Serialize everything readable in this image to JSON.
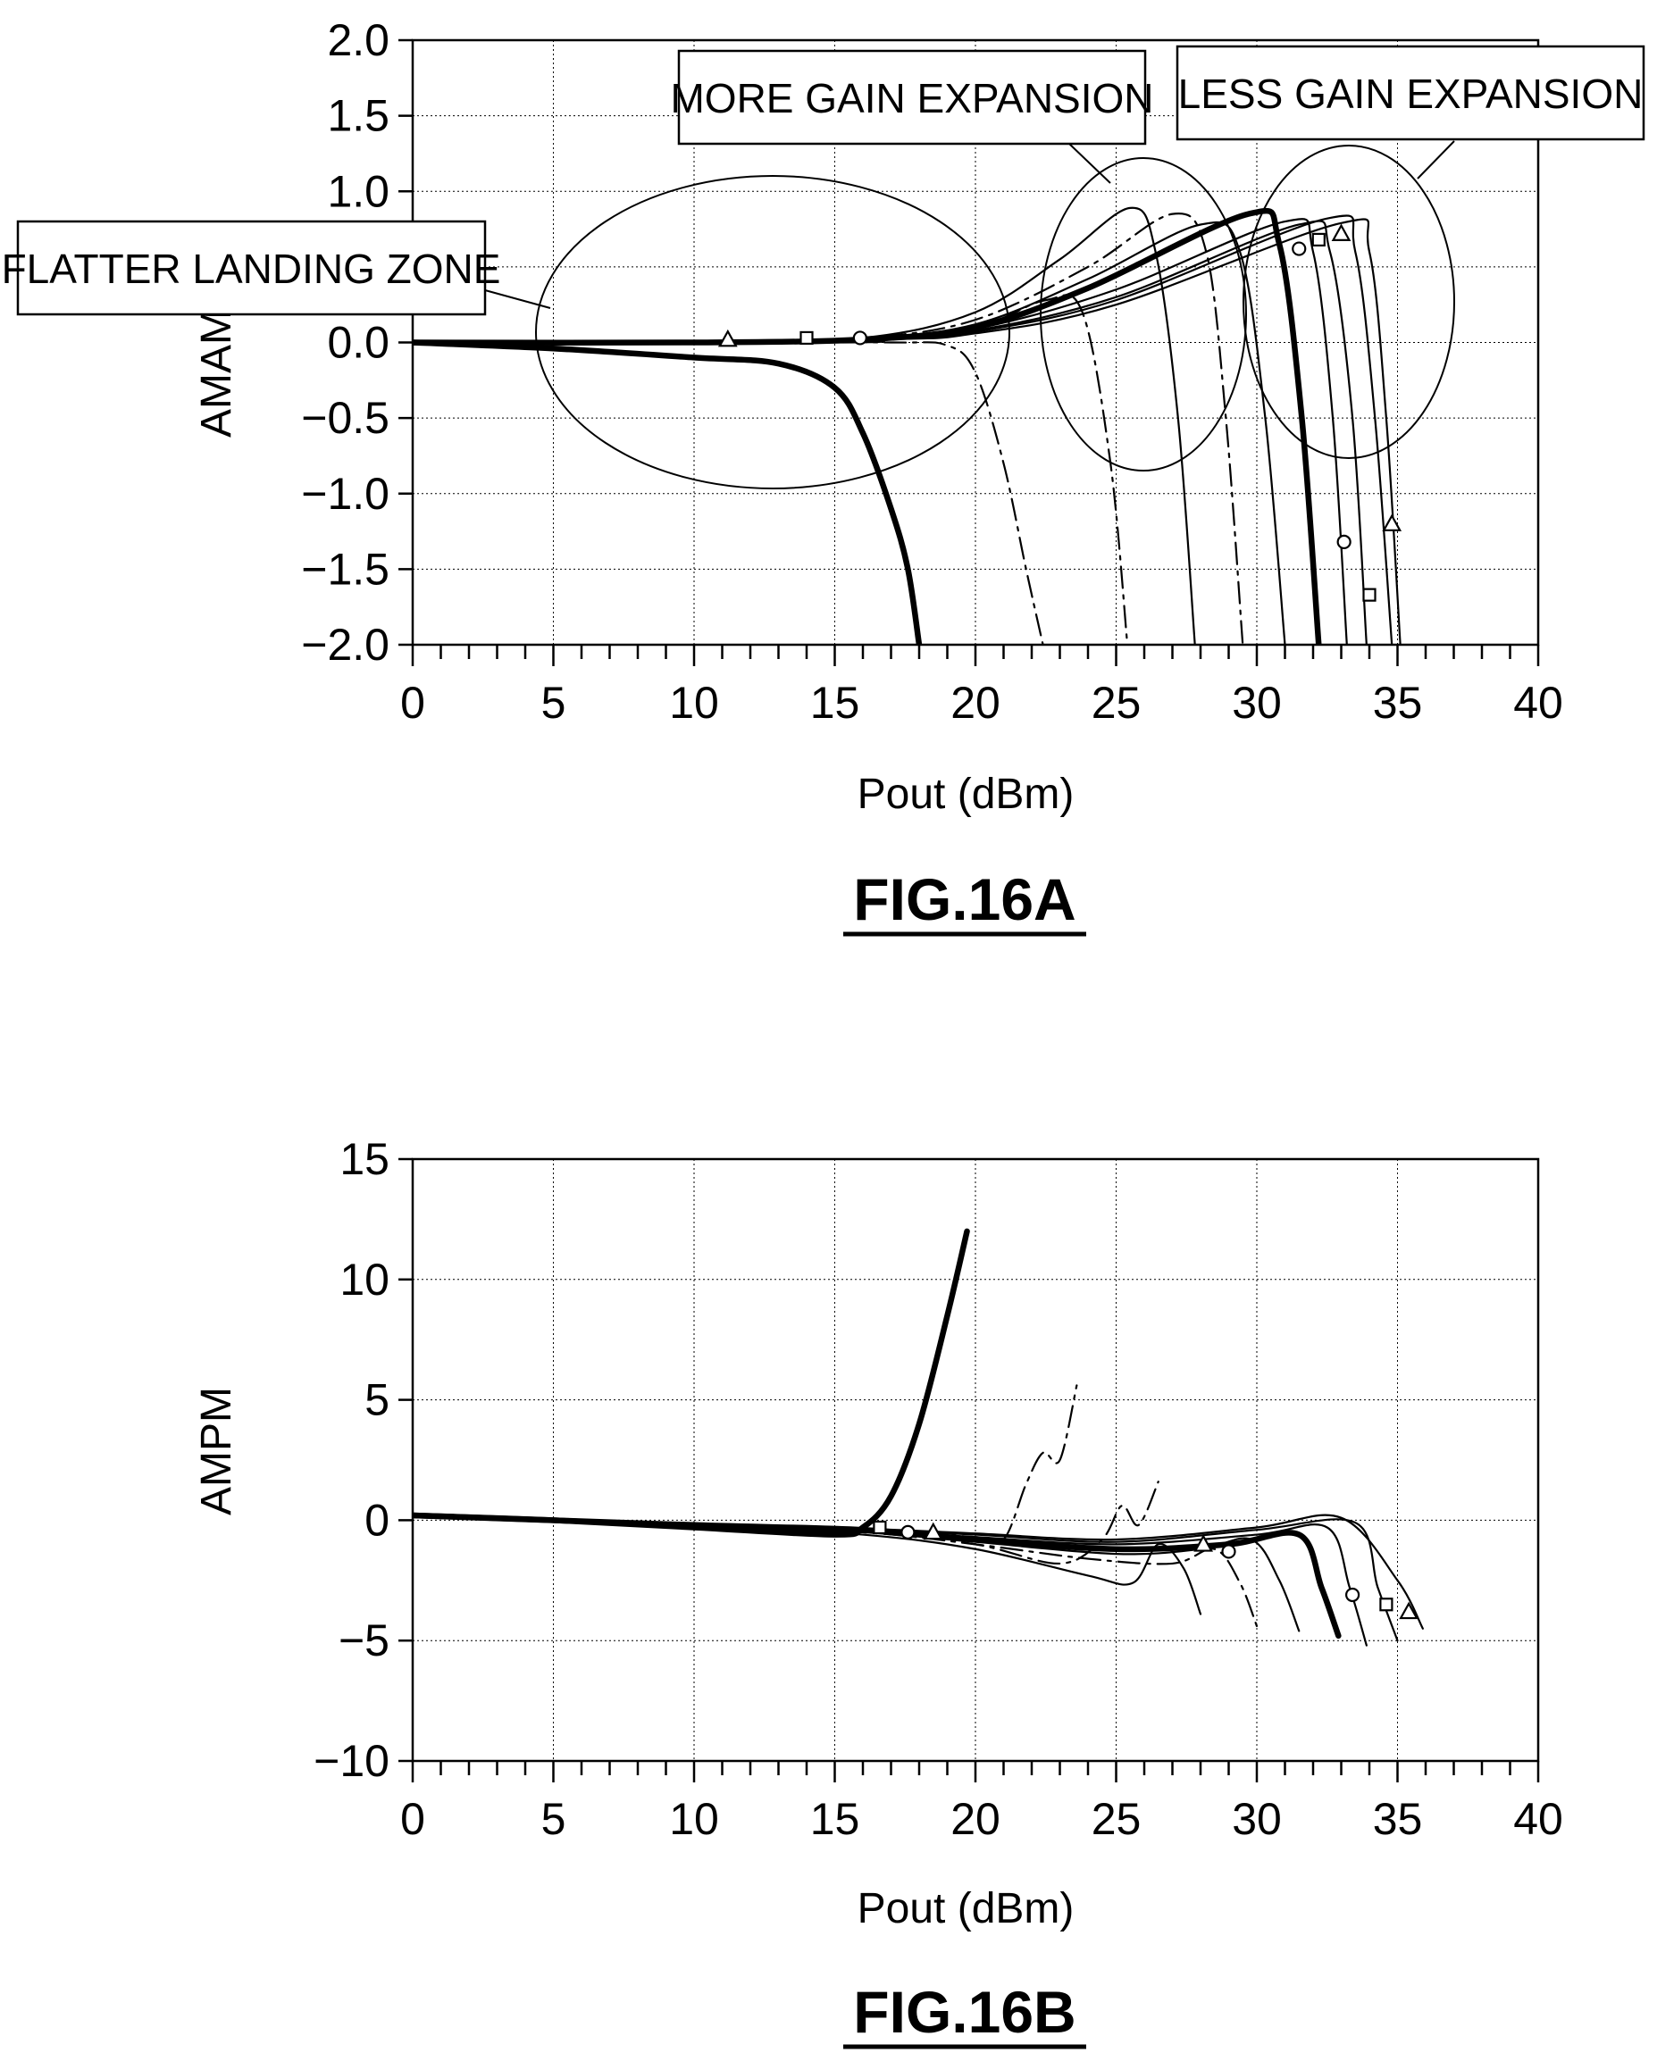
{
  "chart_data": [
    {
      "type": "line",
      "xlabel": "Pout (dBm)",
      "ylabel": "AMAM",
      "xlim": [
        0,
        40
      ],
      "ylim": [
        -2.0,
        2.0
      ],
      "xticks": [
        "0",
        "5",
        "10",
        "15",
        "20",
        "25",
        "30",
        "35",
        "40"
      ],
      "yticks": [
        "2.0",
        "1.5",
        "1.0",
        "0.5",
        "0.0",
        "−0.5",
        "−1.0",
        "−1.5",
        "−2.0"
      ],
      "grid": true,
      "figure_label": "FIG.16A",
      "annotations": [
        "MORE GAIN EXPANSION",
        "LESS GAIN EXPANSION",
        "FLATTER LANDING ZONE"
      ],
      "series": [
        {
          "style": "bold",
          "x": [
            0,
            5,
            10,
            13,
            15,
            16,
            17,
            17.6,
            18
          ],
          "y": [
            0,
            -0.04,
            -0.1,
            -0.14,
            -0.3,
            -0.6,
            -1.1,
            -1.5,
            -2.0
          ]
        },
        {
          "style": "dashdot",
          "x": [
            0,
            10,
            17,
            19,
            20,
            21,
            21.8,
            22.4
          ],
          "y": [
            0,
            0,
            0,
            -0.02,
            -0.2,
            -0.8,
            -1.5,
            -2.0
          ]
        },
        {
          "style": "dashdot",
          "x": [
            0,
            10,
            16,
            20,
            22.5,
            23.8,
            24.8,
            25.4
          ],
          "y": [
            0,
            0,
            0.02,
            0.1,
            0.28,
            0.2,
            -0.8,
            -2.0
          ]
        },
        {
          "style": "thin",
          "x": [
            0,
            10,
            16,
            20,
            23,
            25.5,
            26.4,
            27.2,
            27.8
          ],
          "y": [
            0,
            0,
            0.03,
            0.2,
            0.55,
            0.89,
            0.6,
            -0.5,
            -2.0
          ]
        },
        {
          "style": "dashdot",
          "x": [
            0,
            10,
            16,
            20,
            24,
            27,
            28.2,
            28.9,
            29.5
          ],
          "y": [
            0,
            0,
            0.03,
            0.15,
            0.5,
            0.85,
            0.6,
            -0.5,
            -2.0
          ]
        },
        {
          "style": "thin",
          "x": [
            0,
            10,
            16,
            20,
            24,
            28,
            29.4,
            30.3,
            31.0
          ],
          "y": [
            0,
            0,
            0.03,
            0.12,
            0.42,
            0.78,
            0.6,
            -0.5,
            -2.0
          ]
        },
        {
          "style": "bold",
          "x": [
            0,
            10,
            16,
            20,
            24,
            29.7,
            30.8,
            31.6,
            32.2
          ],
          "y": [
            0,
            0,
            0.02,
            0.1,
            0.36,
            0.85,
            0.65,
            -0.5,
            -2.0
          ]
        },
        {
          "style": "thin",
          "x": [
            0,
            11.2,
            16,
            20,
            25,
            31,
            32,
            32.7,
            33.2
          ],
          "y": [
            0,
            0,
            0.02,
            0.09,
            0.35,
            0.8,
            0.6,
            -0.5,
            -2.0
          ]
        },
        {
          "style": "thin",
          "x": [
            0,
            14,
            16,
            20,
            25,
            31.5,
            32.6,
            33.4,
            33.9
          ],
          "y": [
            0,
            0,
            0.02,
            0.08,
            0.3,
            0.78,
            0.6,
            -0.5,
            -2.0
          ]
        },
        {
          "style": "thin",
          "x": [
            0,
            15,
            17,
            20,
            25,
            32.5,
            33.5,
            34.2,
            34.8
          ],
          "y": [
            0,
            0,
            0.02,
            0.07,
            0.28,
            0.82,
            0.6,
            -0.5,
            -2.0
          ]
        },
        {
          "style": "thin",
          "x": [
            0,
            16,
            20,
            25,
            33,
            34,
            34.6,
            35.1
          ],
          "y": [
            0,
            0.02,
            0.06,
            0.25,
            0.79,
            0.6,
            -0.5,
            -2.0
          ]
        }
      ],
      "markers": [
        {
          "shape": "triangle",
          "x": 11.2,
          "y": 0.02
        },
        {
          "shape": "square",
          "x": 14.0,
          "y": 0.03
        },
        {
          "shape": "circle",
          "x": 15.9,
          "y": 0.03
        },
        {
          "shape": "circle",
          "x": 31.5,
          "y": 0.62
        },
        {
          "shape": "square",
          "x": 32.2,
          "y": 0.68
        },
        {
          "shape": "triangle",
          "x": 33.0,
          "y": 0.72
        },
        {
          "shape": "circle",
          "x": 33.1,
          "y": -1.32
        },
        {
          "shape": "square",
          "x": 34.0,
          "y": -1.67
        },
        {
          "shape": "triangle",
          "x": 34.8,
          "y": -1.2
        }
      ]
    },
    {
      "type": "line",
      "xlabel": "Pout (dBm)",
      "ylabel": "AMPM",
      "xlim": [
        0,
        40
      ],
      "ylim": [
        -10,
        15
      ],
      "xticks": [
        "0",
        "5",
        "10",
        "15",
        "20",
        "25",
        "30",
        "35",
        "40"
      ],
      "yticks": [
        "15",
        "10",
        "5",
        "0",
        "−5",
        "−10"
      ],
      "grid": true,
      "figure_label": "FIG.16B",
      "series": [
        {
          "style": "bold",
          "x": [
            0,
            5,
            10,
            15,
            16,
            17,
            18,
            19,
            19.7
          ],
          "y": [
            0.2,
            0,
            -0.3,
            -0.6,
            -0.3,
            1.0,
            4.0,
            8.5,
            12
          ]
        },
        {
          "style": "dashdot",
          "x": [
            0,
            10,
            16,
            20,
            21,
            21.8,
            22.4,
            23,
            23.6
          ],
          "y": [
            0.2,
            -0.2,
            -0.4,
            -0.7,
            -0.8,
            1.5,
            2.8,
            2.5,
            5.6
          ]
        },
        {
          "style": "dashdot",
          "x": [
            0,
            10,
            16,
            20,
            23,
            24.5,
            25.2,
            25.8,
            26.5
          ],
          "y": [
            0.2,
            -0.2,
            -0.5,
            -1.0,
            -1.8,
            -0.8,
            0.6,
            -0.2,
            1.6
          ]
        },
        {
          "style": "thin",
          "x": [
            0,
            10,
            16,
            20,
            24,
            25.6,
            26.5,
            27.4,
            28.0
          ],
          "y": [
            0.2,
            -0.2,
            -0.6,
            -1.2,
            -2.3,
            -2.6,
            -1.0,
            -2.0,
            -3.9
          ]
        },
        {
          "style": "dashdot",
          "x": [
            0,
            10,
            16,
            20,
            24,
            27,
            28.5,
            29.4,
            30.0
          ],
          "y": [
            0.2,
            -0.2,
            -0.5,
            -1.0,
            -1.6,
            -1.8,
            -1.2,
            -2.6,
            -4.4
          ]
        },
        {
          "style": "thin",
          "x": [
            0,
            10,
            16,
            20,
            25,
            28,
            29.8,
            30.8,
            31.5
          ],
          "y": [
            0.2,
            -0.2,
            -0.5,
            -0.9,
            -1.4,
            -1.2,
            -0.8,
            -2.5,
            -4.6
          ]
        },
        {
          "style": "bold",
          "x": [
            0,
            10,
            16,
            20,
            25,
            29,
            31.5,
            32.3,
            32.9
          ],
          "y": [
            0.2,
            -0.2,
            -0.4,
            -0.8,
            -1.2,
            -1.0,
            -0.6,
            -2.8,
            -4.8
          ]
        },
        {
          "style": "thin",
          "x": [
            0,
            10,
            16,
            20,
            25,
            30,
            32.5,
            33.3,
            33.9
          ],
          "y": [
            0.2,
            -0.2,
            -0.4,
            -0.7,
            -1.0,
            -0.6,
            -0.3,
            -2.8,
            -5.2
          ]
        },
        {
          "style": "thin",
          "x": [
            0,
            10,
            16,
            20,
            25,
            30,
            33.5,
            34.3,
            35.0
          ],
          "y": [
            0.2,
            -0.2,
            -0.4,
            -0.6,
            -0.9,
            -0.4,
            -0.1,
            -2.8,
            -5.0
          ]
        },
        {
          "style": "thin",
          "x": [
            0,
            10,
            16,
            20,
            25,
            30,
            33,
            35,
            35.9
          ],
          "y": [
            0.2,
            -0.2,
            -0.35,
            -0.55,
            -0.8,
            -0.3,
            0.1,
            -2.5,
            -4.5
          ]
        }
      ],
      "markers": [
        {
          "shape": "square",
          "x": 16.6,
          "y": -0.3
        },
        {
          "shape": "circle",
          "x": 17.6,
          "y": -0.5
        },
        {
          "shape": "triangle",
          "x": 18.5,
          "y": -0.5
        },
        {
          "shape": "triangle",
          "x": 28.1,
          "y": -1.0
        },
        {
          "shape": "circle",
          "x": 29.0,
          "y": -1.3
        },
        {
          "shape": "circle",
          "x": 33.4,
          "y": -3.1
        },
        {
          "shape": "square",
          "x": 34.6,
          "y": -3.5
        },
        {
          "shape": "triangle",
          "x": 35.4,
          "y": -3.8
        }
      ]
    }
  ]
}
